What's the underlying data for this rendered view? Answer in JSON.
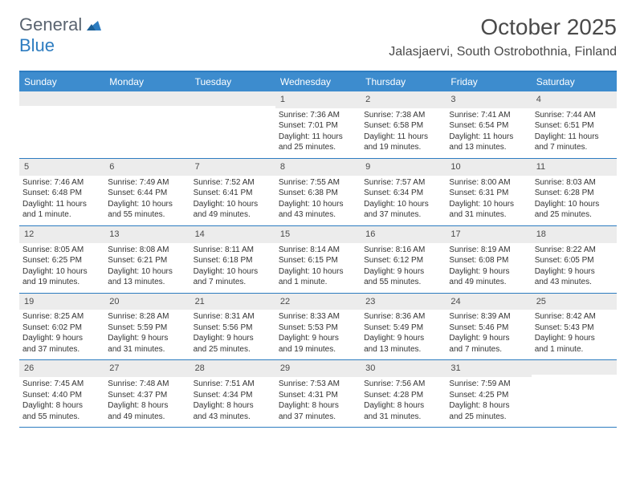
{
  "brand": {
    "word1": "General",
    "word2": "Blue"
  },
  "title": "October 2025",
  "location": "Jalasjaervi, South Ostrobothnia, Finland",
  "colors": {
    "header_bar": "#3d8cce",
    "rule": "#2d7cc0",
    "daynum_bg": "#ececec",
    "text": "#333333",
    "title_text": "#4a4a4a"
  },
  "weekdays": [
    "Sunday",
    "Monday",
    "Tuesday",
    "Wednesday",
    "Thursday",
    "Friday",
    "Saturday"
  ],
  "weeks": [
    [
      null,
      null,
      null,
      {
        "n": "1",
        "sr": "Sunrise: 7:36 AM",
        "ss": "Sunset: 7:01 PM",
        "dl1": "Daylight: 11 hours",
        "dl2": "and 25 minutes."
      },
      {
        "n": "2",
        "sr": "Sunrise: 7:38 AM",
        "ss": "Sunset: 6:58 PM",
        "dl1": "Daylight: 11 hours",
        "dl2": "and 19 minutes."
      },
      {
        "n": "3",
        "sr": "Sunrise: 7:41 AM",
        "ss": "Sunset: 6:54 PM",
        "dl1": "Daylight: 11 hours",
        "dl2": "and 13 minutes."
      },
      {
        "n": "4",
        "sr": "Sunrise: 7:44 AM",
        "ss": "Sunset: 6:51 PM",
        "dl1": "Daylight: 11 hours",
        "dl2": "and 7 minutes."
      }
    ],
    [
      {
        "n": "5",
        "sr": "Sunrise: 7:46 AM",
        "ss": "Sunset: 6:48 PM",
        "dl1": "Daylight: 11 hours",
        "dl2": "and 1 minute."
      },
      {
        "n": "6",
        "sr": "Sunrise: 7:49 AM",
        "ss": "Sunset: 6:44 PM",
        "dl1": "Daylight: 10 hours",
        "dl2": "and 55 minutes."
      },
      {
        "n": "7",
        "sr": "Sunrise: 7:52 AM",
        "ss": "Sunset: 6:41 PM",
        "dl1": "Daylight: 10 hours",
        "dl2": "and 49 minutes."
      },
      {
        "n": "8",
        "sr": "Sunrise: 7:55 AM",
        "ss": "Sunset: 6:38 PM",
        "dl1": "Daylight: 10 hours",
        "dl2": "and 43 minutes."
      },
      {
        "n": "9",
        "sr": "Sunrise: 7:57 AM",
        "ss": "Sunset: 6:34 PM",
        "dl1": "Daylight: 10 hours",
        "dl2": "and 37 minutes."
      },
      {
        "n": "10",
        "sr": "Sunrise: 8:00 AM",
        "ss": "Sunset: 6:31 PM",
        "dl1": "Daylight: 10 hours",
        "dl2": "and 31 minutes."
      },
      {
        "n": "11",
        "sr": "Sunrise: 8:03 AM",
        "ss": "Sunset: 6:28 PM",
        "dl1": "Daylight: 10 hours",
        "dl2": "and 25 minutes."
      }
    ],
    [
      {
        "n": "12",
        "sr": "Sunrise: 8:05 AM",
        "ss": "Sunset: 6:25 PM",
        "dl1": "Daylight: 10 hours",
        "dl2": "and 19 minutes."
      },
      {
        "n": "13",
        "sr": "Sunrise: 8:08 AM",
        "ss": "Sunset: 6:21 PM",
        "dl1": "Daylight: 10 hours",
        "dl2": "and 13 minutes."
      },
      {
        "n": "14",
        "sr": "Sunrise: 8:11 AM",
        "ss": "Sunset: 6:18 PM",
        "dl1": "Daylight: 10 hours",
        "dl2": "and 7 minutes."
      },
      {
        "n": "15",
        "sr": "Sunrise: 8:14 AM",
        "ss": "Sunset: 6:15 PM",
        "dl1": "Daylight: 10 hours",
        "dl2": "and 1 minute."
      },
      {
        "n": "16",
        "sr": "Sunrise: 8:16 AM",
        "ss": "Sunset: 6:12 PM",
        "dl1": "Daylight: 9 hours",
        "dl2": "and 55 minutes."
      },
      {
        "n": "17",
        "sr": "Sunrise: 8:19 AM",
        "ss": "Sunset: 6:08 PM",
        "dl1": "Daylight: 9 hours",
        "dl2": "and 49 minutes."
      },
      {
        "n": "18",
        "sr": "Sunrise: 8:22 AM",
        "ss": "Sunset: 6:05 PM",
        "dl1": "Daylight: 9 hours",
        "dl2": "and 43 minutes."
      }
    ],
    [
      {
        "n": "19",
        "sr": "Sunrise: 8:25 AM",
        "ss": "Sunset: 6:02 PM",
        "dl1": "Daylight: 9 hours",
        "dl2": "and 37 minutes."
      },
      {
        "n": "20",
        "sr": "Sunrise: 8:28 AM",
        "ss": "Sunset: 5:59 PM",
        "dl1": "Daylight: 9 hours",
        "dl2": "and 31 minutes."
      },
      {
        "n": "21",
        "sr": "Sunrise: 8:31 AM",
        "ss": "Sunset: 5:56 PM",
        "dl1": "Daylight: 9 hours",
        "dl2": "and 25 minutes."
      },
      {
        "n": "22",
        "sr": "Sunrise: 8:33 AM",
        "ss": "Sunset: 5:53 PM",
        "dl1": "Daylight: 9 hours",
        "dl2": "and 19 minutes."
      },
      {
        "n": "23",
        "sr": "Sunrise: 8:36 AM",
        "ss": "Sunset: 5:49 PM",
        "dl1": "Daylight: 9 hours",
        "dl2": "and 13 minutes."
      },
      {
        "n": "24",
        "sr": "Sunrise: 8:39 AM",
        "ss": "Sunset: 5:46 PM",
        "dl1": "Daylight: 9 hours",
        "dl2": "and 7 minutes."
      },
      {
        "n": "25",
        "sr": "Sunrise: 8:42 AM",
        "ss": "Sunset: 5:43 PM",
        "dl1": "Daylight: 9 hours",
        "dl2": "and 1 minute."
      }
    ],
    [
      {
        "n": "26",
        "sr": "Sunrise: 7:45 AM",
        "ss": "Sunset: 4:40 PM",
        "dl1": "Daylight: 8 hours",
        "dl2": "and 55 minutes."
      },
      {
        "n": "27",
        "sr": "Sunrise: 7:48 AM",
        "ss": "Sunset: 4:37 PM",
        "dl1": "Daylight: 8 hours",
        "dl2": "and 49 minutes."
      },
      {
        "n": "28",
        "sr": "Sunrise: 7:51 AM",
        "ss": "Sunset: 4:34 PM",
        "dl1": "Daylight: 8 hours",
        "dl2": "and 43 minutes."
      },
      {
        "n": "29",
        "sr": "Sunrise: 7:53 AM",
        "ss": "Sunset: 4:31 PM",
        "dl1": "Daylight: 8 hours",
        "dl2": "and 37 minutes."
      },
      {
        "n": "30",
        "sr": "Sunrise: 7:56 AM",
        "ss": "Sunset: 4:28 PM",
        "dl1": "Daylight: 8 hours",
        "dl2": "and 31 minutes."
      },
      {
        "n": "31",
        "sr": "Sunrise: 7:59 AM",
        "ss": "Sunset: 4:25 PM",
        "dl1": "Daylight: 8 hours",
        "dl2": "and 25 minutes."
      },
      null
    ]
  ]
}
